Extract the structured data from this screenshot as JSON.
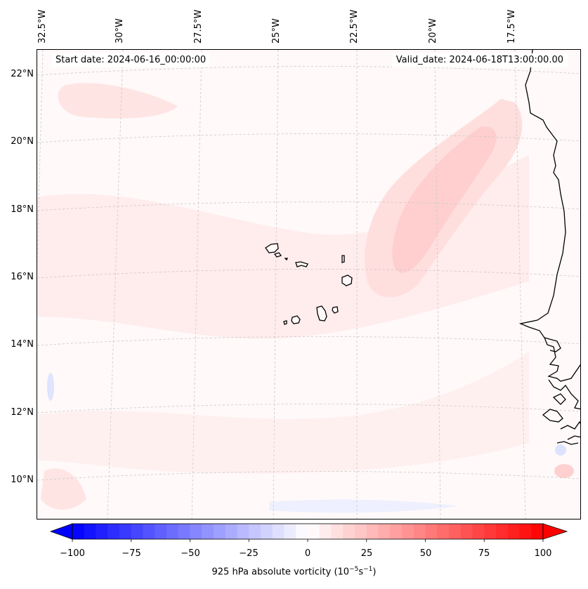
{
  "map": {
    "projection": "Lambert conformal",
    "region": "Eastern tropical Atlantic — Cabo Verde and West African coast",
    "field": "925 hPa absolute vorticity",
    "background_color": "#fff9f9"
  },
  "header": {
    "start_date": "Start date: 2024-06-16_00:00:00",
    "valid_date": "Valid_date: 2024-06-18T13:00:00.00"
  },
  "lat_labels": [
    "22°N",
    "20°N",
    "18°N",
    "16°N",
    "14°N",
    "12°N",
    "10°N"
  ],
  "lon_labels": [
    "32.5°W",
    "30°W",
    "27.5°W",
    "25°W",
    "22.5°W",
    "20°W",
    "17.5°W"
  ],
  "colorbar": {
    "cmap": "bwr",
    "min": -100,
    "max": 100,
    "ticks": [
      "−100",
      "−75",
      "−50",
      "−25",
      "0",
      "25",
      "50",
      "75",
      "100"
    ],
    "label_text": "925 hPa absolute vorticity (10",
    "label_exp1": "−5",
    "label_mid": "s",
    "label_exp2": "−1",
    "label_end": ")",
    "extend": "both",
    "low_color": "#0000ff",
    "mid_color": "#ffffff",
    "high_color": "#ff0000"
  },
  "colors": {
    "coastline": "#000000",
    "gridline": "#c8c8c8",
    "weak_positive": "#ffe6e6",
    "moderate_positive": "#ffd2d2",
    "weak_negative": "#eef0ff"
  }
}
